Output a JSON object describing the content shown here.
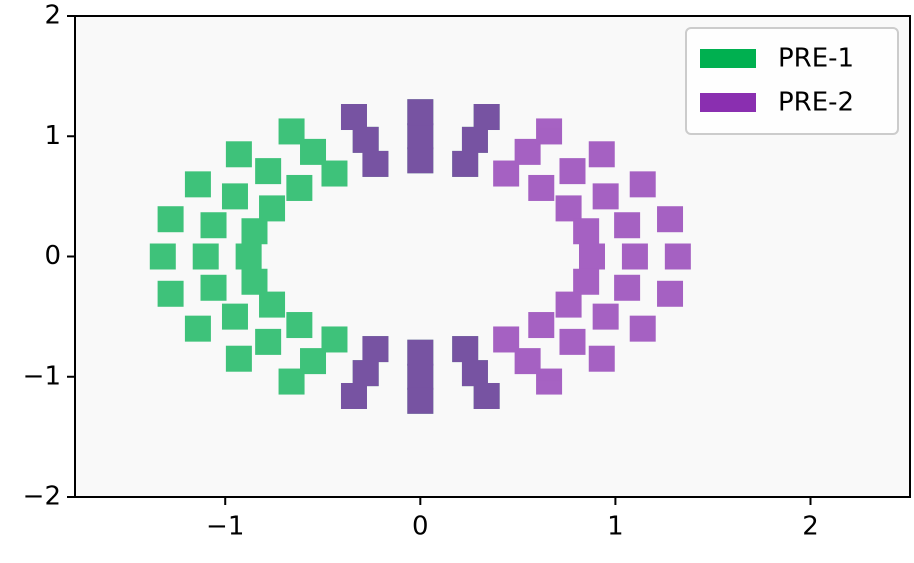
{
  "chart_data": {
    "type": "scatter",
    "xlim": [
      -1.77,
      2.51
    ],
    "ylim": [
      -2,
      2
    ],
    "xticks": [
      {
        "value": -1,
        "label": "−1"
      },
      0,
      1,
      2
    ],
    "yticks": [
      {
        "value": -2,
        "label": "−2"
      },
      {
        "value": -1,
        "label": "−1"
      },
      0,
      1,
      2
    ],
    "legend": "upper right",
    "series": [
      {
        "name": "PRE-1",
        "color": "#00b050",
        "x": [
          0.23,
          0,
          -0.23,
          -0.44,
          -0.62,
          -0.76,
          -0.85,
          -0.88,
          -0.85,
          -0.76,
          -0.62,
          -0.44,
          -0.23,
          0,
          0.23,
          0.28,
          0,
          -0.28,
          -0.55,
          -0.78,
          -0.95,
          -1.06,
          -1.1,
          -1.06,
          -0.95,
          -0.78,
          -0.55,
          -0.28,
          0,
          0.28,
          0.34,
          0,
          -0.34,
          -0.66,
          -0.93,
          -1.14,
          -1.28,
          -1.32,
          -1.28,
          -1.14,
          -0.93,
          -0.66,
          -0.34,
          0,
          0.34
        ],
        "values": [
          0.77,
          0.8,
          0.77,
          0.69,
          0.57,
          0.4,
          0.21,
          0,
          -0.21,
          -0.4,
          -0.57,
          -0.69,
          -0.77,
          -0.8,
          -0.77,
          0.97,
          1,
          0.97,
          0.87,
          0.71,
          0.5,
          0.26,
          0,
          -0.26,
          -0.5,
          -0.71,
          -0.87,
          -0.97,
          -1,
          -0.97,
          1.16,
          1.2,
          1.16,
          1.04,
          0.85,
          0.6,
          0.31,
          0,
          -0.31,
          -0.6,
          -0.85,
          -1.04,
          -1.16,
          -1.2,
          -1.16
        ]
      },
      {
        "name": "PRE-2",
        "color": "#8a2fb0",
        "x": [
          -0.23,
          0,
          0.23,
          0.44,
          0.62,
          0.76,
          0.85,
          0.88,
          0.85,
          0.76,
          0.62,
          0.44,
          0.23,
          0,
          -0.23,
          -0.28,
          0,
          0.28,
          0.55,
          0.78,
          0.95,
          1.06,
          1.1,
          1.06,
          0.95,
          0.78,
          0.55,
          0.28,
          0,
          -0.28,
          -0.34,
          0,
          0.34,
          0.66,
          0.93,
          1.14,
          1.28,
          1.32,
          1.28,
          1.14,
          0.93,
          0.66,
          0.34,
          0,
          -0.34
        ],
        "values": [
          0.77,
          0.8,
          0.77,
          0.69,
          0.57,
          0.4,
          0.21,
          0,
          -0.21,
          -0.4,
          -0.57,
          -0.69,
          -0.77,
          -0.8,
          -0.77,
          0.97,
          1,
          0.97,
          0.87,
          0.71,
          0.5,
          0.26,
          0,
          -0.26,
          -0.5,
          -0.71,
          -0.87,
          -0.97,
          -1,
          -0.97,
          1.16,
          1.2,
          1.16,
          1.04,
          0.85,
          0.6,
          0.31,
          0,
          -0.31,
          -0.6,
          -0.85,
          -1.04,
          -1.16,
          -1.2,
          -1.16
        ]
      }
    ]
  }
}
